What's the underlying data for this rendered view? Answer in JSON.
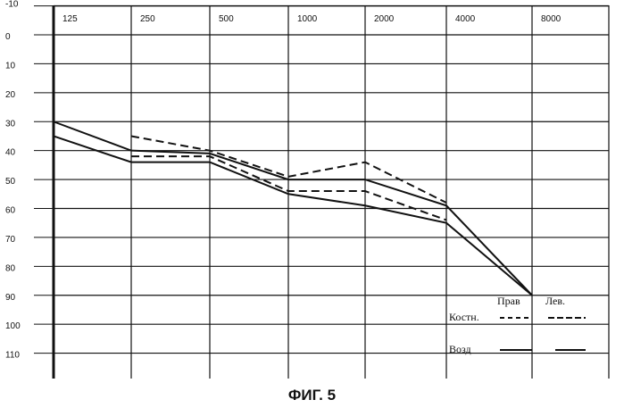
{
  "chart_data": {
    "type": "line",
    "x_ticks": [
      "125",
      "250",
      "500",
      "1000",
      "2000",
      "4000",
      "8000"
    ],
    "y_ticks": [
      "-10",
      "0",
      "10",
      "20",
      "30",
      "40",
      "50",
      "60",
      "70",
      "80",
      "90",
      "100",
      "110"
    ],
    "ylim": [
      -10,
      110
    ],
    "y_reversed": true,
    "grid": true,
    "legend": {
      "position": "bottom-right",
      "col_labels": [
        "Прав",
        "Лев."
      ],
      "row_labels": [
        "Костн.",
        "Возд"
      ]
    },
    "series": [
      {
        "style": "dashed",
        "x": [
          250,
          500,
          1000,
          2000,
          4000
        ],
        "y": [
          35,
          40,
          49,
          44,
          58
        ]
      },
      {
        "style": "dashed",
        "x": [
          250,
          500,
          1000,
          2000,
          4000
        ],
        "y": [
          42,
          42,
          54,
          54,
          64
        ]
      },
      {
        "style": "solid",
        "x": [
          125,
          250,
          500,
          1000,
          2000,
          4000,
          8000
        ],
        "y": [
          30,
          40,
          41,
          50,
          50,
          59,
          90
        ]
      },
      {
        "style": "solid",
        "x": [
          125,
          250,
          500,
          1000,
          2000,
          4000,
          8000
        ],
        "y": [
          35,
          44,
          44,
          55,
          59,
          65,
          90
        ]
      }
    ]
  },
  "caption": "ФИГ. 5"
}
